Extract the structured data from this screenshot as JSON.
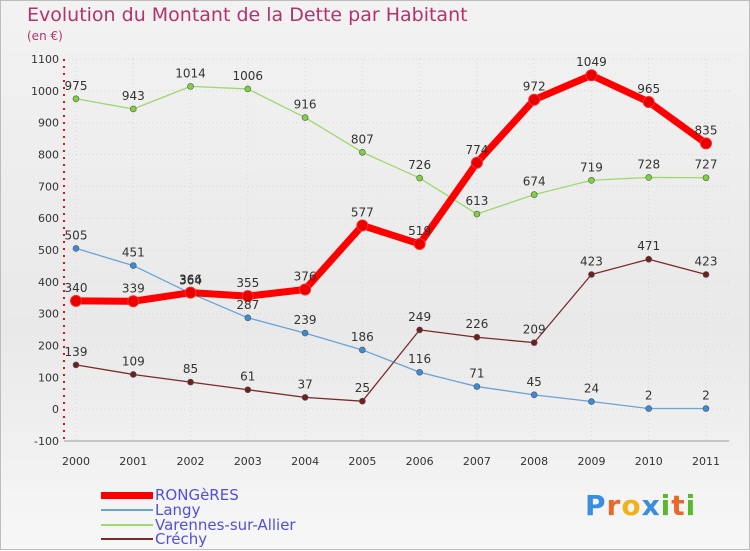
{
  "title": "Evolution du Montant de la Dette par Habitant",
  "subtitle": "(en €)",
  "brand": {
    "text": "Proxiti",
    "letters": [
      {
        "ch": "P",
        "color": "#3a8de0"
      },
      {
        "ch": "r",
        "color": "#e8692a"
      },
      {
        "ch": "o",
        "color": "#f0b21a"
      },
      {
        "ch": "x",
        "color": "#3a8de0"
      },
      {
        "ch": "i",
        "color": "#5ab82e"
      },
      {
        "ch": "t",
        "color": "#e8692a"
      },
      {
        "ch": "i",
        "color": "#5ab82e"
      }
    ]
  },
  "chart_data": {
    "type": "line",
    "x": [
      "2000",
      "2001",
      "2002",
      "2003",
      "2004",
      "2005",
      "2006",
      "2007",
      "2008",
      "2009",
      "2010",
      "2011"
    ],
    "ylim": [
      -100,
      1100
    ],
    "yticks": [
      -100,
      0,
      100,
      200,
      300,
      400,
      500,
      600,
      700,
      800,
      900,
      1000,
      1100
    ],
    "ytick_labels": [
      "-100",
      "0",
      "100",
      "200",
      "300",
      "400",
      "500",
      "600",
      "700",
      "800",
      "900",
      "1000",
      "1100"
    ],
    "grid": true,
    "legend_position": "bottom-left",
    "series": [
      {
        "name": "RONGèRES",
        "color": "#ff0000",
        "marker_fill": "#e80000",
        "width": 7,
        "radius": 5.5,
        "values": [
          340,
          339,
          366,
          355,
          376,
          577,
          519,
          774,
          972,
          1049,
          965,
          835
        ]
      },
      {
        "name": "Langy",
        "color": "#6aa3d8",
        "marker_fill": "#3d8ad6",
        "width": 1.3,
        "radius": 3,
        "values": [
          505,
          451,
          364,
          287,
          239,
          186,
          116,
          71,
          45,
          24,
          2,
          2
        ]
      },
      {
        "name": "Varennes-sur-Allier",
        "color": "#9fd86e",
        "marker_fill": "#7fd13f",
        "width": 1.3,
        "radius": 3,
        "values": [
          975,
          943,
          1014,
          1006,
          916,
          807,
          726,
          613,
          674,
          719,
          728,
          727
        ]
      },
      {
        "name": "Créchy",
        "color": "#7a2a2a",
        "marker_fill": "#6e1f1f",
        "width": 1.3,
        "radius": 3,
        "values": [
          139,
          109,
          85,
          61,
          37,
          25,
          249,
          226,
          209,
          423,
          471,
          423
        ]
      }
    ]
  }
}
